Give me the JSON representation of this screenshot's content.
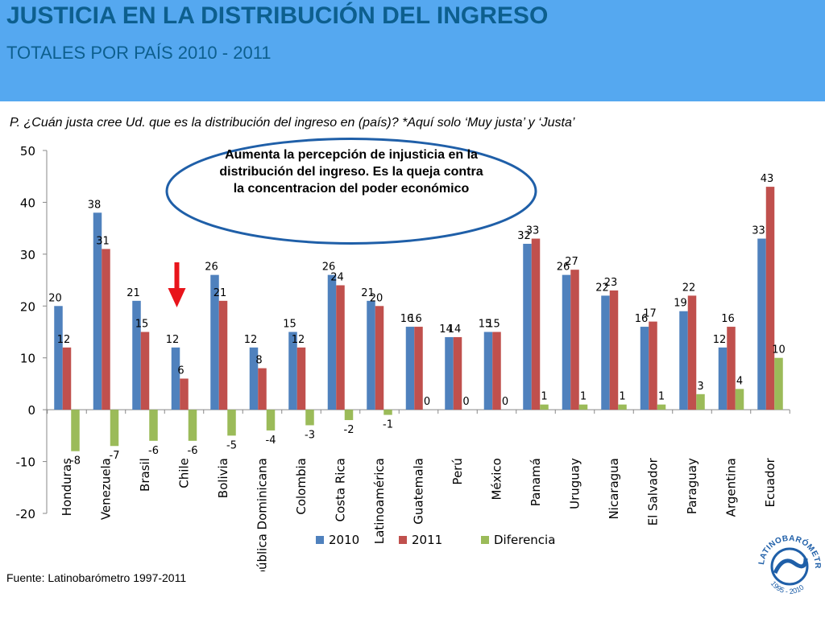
{
  "header": {
    "title": "JUSTICIA EN LA DISTRIBUCIÓN DEL INGRESO",
    "subtitle": "TOTALES POR PAÍS 2010 - 2011"
  },
  "question": "P. ¿Cuán justa cree Ud. que es la distribución del ingreso en (país)? *Aquí solo ‘Muy justa’ y ‘Justa’",
  "callout": "Aumenta la percepción de injusticia en la distribución del ingreso. Es la queja contra la concentracion del poder económico",
  "source": "Fuente: Latinobarómetro 1997-2011",
  "logo": {
    "top_text": "LATINOBARÓMETRO",
    "bottom_text": "1995 - 2010"
  },
  "colors": {
    "header": "#55a8f0",
    "title": "#0d5f8e",
    "s2010": "#4f81bd",
    "s2011": "#c0504d",
    "diff": "#9bbb59",
    "arrow": "#e8141b",
    "callout_border": "#1f5fa8"
  },
  "chart_data": {
    "type": "bar",
    "categories": [
      "Honduras",
      "Venezuela",
      "Brasil",
      "Chile",
      "Bolivia",
      "República Dominicana",
      "Colombia",
      "Costa Rica",
      "Latinoamérica",
      "Guatemala",
      "Perú",
      "México",
      "Panamá",
      "Uruguay",
      "Nicaragua",
      "El Salvador",
      "Paraguay",
      "Argentina",
      "Ecuador"
    ],
    "series": [
      {
        "name": "2010",
        "values": [
          20,
          38,
          21,
          12,
          26,
          12,
          15,
          26,
          21,
          16,
          14,
          15,
          32,
          26,
          22,
          16,
          19,
          12,
          33
        ]
      },
      {
        "name": "2011",
        "values": [
          12,
          31,
          15,
          6,
          21,
          8,
          12,
          24,
          20,
          16,
          14,
          15,
          33,
          27,
          23,
          17,
          22,
          16,
          43
        ]
      },
      {
        "name": "Diferencia",
        "values": [
          -8,
          -7,
          -6,
          -6,
          -5,
          -4,
          -3,
          -2,
          -1,
          0,
          0,
          0,
          1,
          1,
          1,
          1,
          3,
          4,
          10
        ]
      }
    ],
    "ylim": [
      -20,
      50
    ],
    "yticks": [
      -20,
      -10,
      0,
      10,
      20,
      30,
      40,
      50
    ],
    "legend": "bottom",
    "grid": false
  }
}
